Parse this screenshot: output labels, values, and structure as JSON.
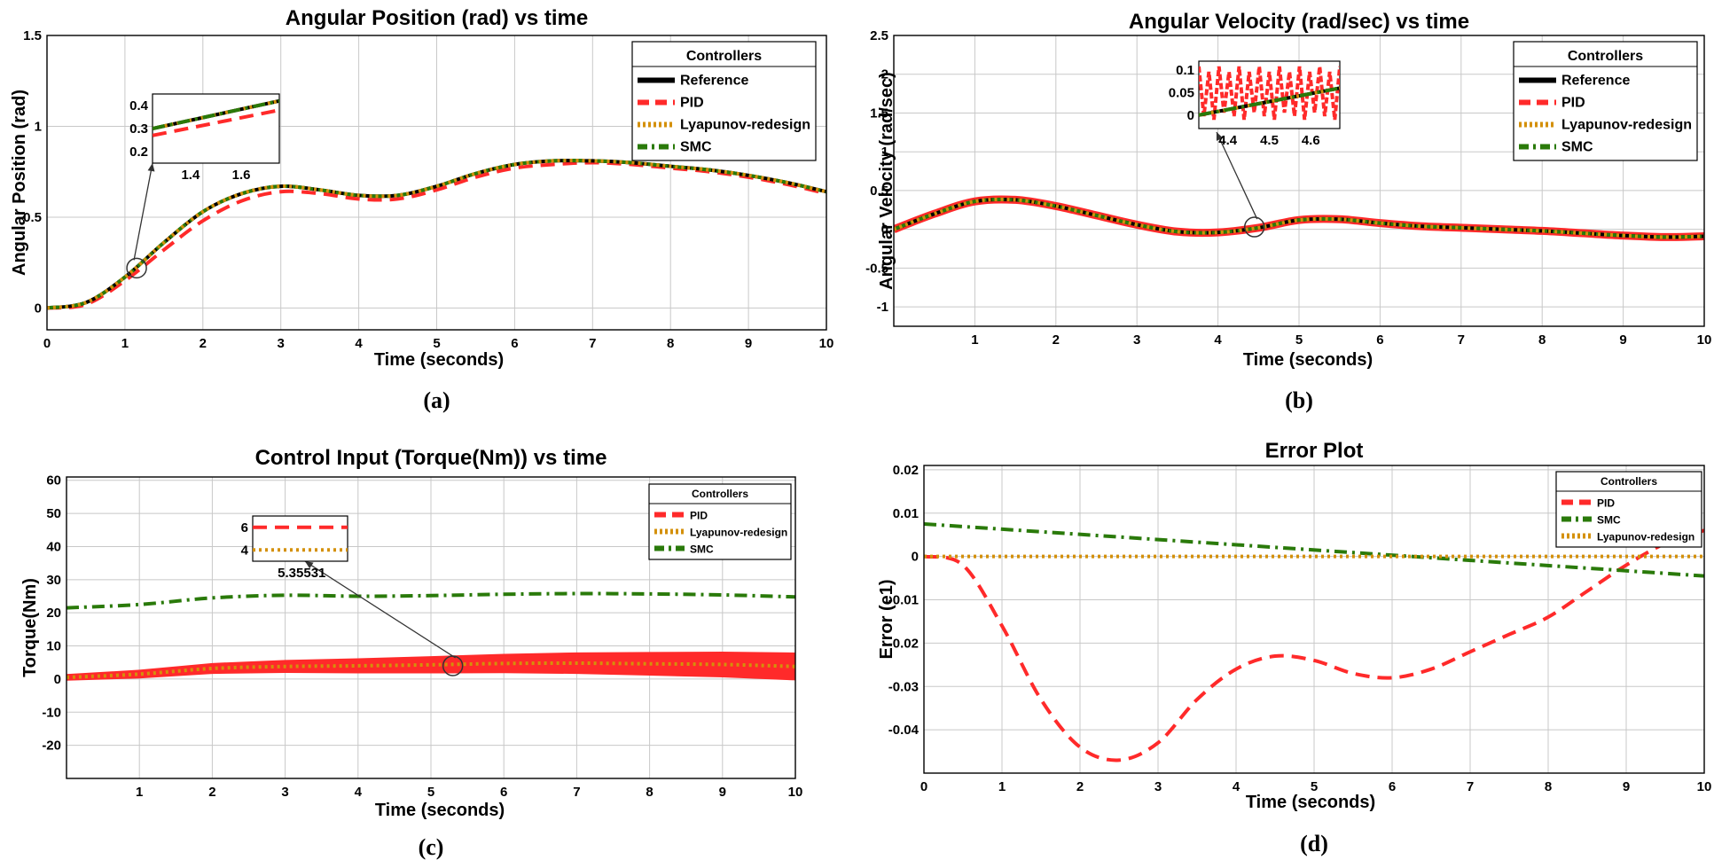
{
  "chart_data": [
    {
      "id": "a",
      "type": "line",
      "title": "Angular Position (rad) vs time",
      "xlabel": "Time (seconds)",
      "ylabel": "Angular Position (rad)",
      "subcaption": "(a)",
      "xlim": [
        0,
        10
      ],
      "ylim": [
        -0.12,
        1.5
      ],
      "xticks": [
        0,
        1,
        2,
        3,
        4,
        5,
        6,
        7,
        8,
        9,
        10
      ],
      "xtick_labels": [
        "0",
        "1",
        "2",
        "3",
        "4",
        "5",
        "6",
        "7",
        "8",
        "9",
        "10"
      ],
      "yticks": [
        0,
        0.5,
        1,
        1.5
      ],
      "ytick_labels": [
        "0",
        "0.5",
        "1",
        "1.5"
      ],
      "legend": {
        "title": "Controllers",
        "position": "top-right",
        "entries": [
          {
            "label": "Reference",
            "color": "#000000",
            "style": "solid"
          },
          {
            "label": "PID",
            "color": "#ff2a2a",
            "style": "dashed"
          },
          {
            "label": "Lyapunov-redesign",
            "color": "#d4900a",
            "style": "dotted"
          },
          {
            "label": "SMC",
            "color": "#2a7a0a",
            "style": "dashdot"
          }
        ]
      },
      "series": [
        {
          "name": "Reference",
          "x": [
            0,
            0.5,
            1,
            1.5,
            2,
            2.5,
            3,
            3.5,
            4,
            4.5,
            5,
            5.5,
            6,
            6.5,
            7,
            7.5,
            8,
            8.5,
            9,
            9.5,
            10
          ],
          "y": [
            0,
            0.03,
            0.17,
            0.36,
            0.53,
            0.63,
            0.67,
            0.65,
            0.62,
            0.62,
            0.67,
            0.74,
            0.79,
            0.81,
            0.81,
            0.8,
            0.78,
            0.76,
            0.73,
            0.69,
            0.64
          ]
        },
        {
          "name": "PID",
          "x": [
            0,
            0.5,
            1,
            1.5,
            2,
            2.5,
            3,
            3.5,
            4,
            4.5,
            5,
            5.5,
            6,
            6.5,
            7,
            7.5,
            8,
            8.5,
            9,
            9.5,
            10
          ],
          "y": [
            0,
            0.02,
            0.15,
            0.32,
            0.48,
            0.59,
            0.64,
            0.63,
            0.6,
            0.6,
            0.65,
            0.72,
            0.77,
            0.79,
            0.8,
            0.79,
            0.77,
            0.75,
            0.72,
            0.68,
            0.63
          ]
        },
        {
          "name": "Lyapunov-redesign",
          "x": [
            0,
            0.5,
            1,
            1.5,
            2,
            2.5,
            3,
            3.5,
            4,
            4.5,
            5,
            5.5,
            6,
            6.5,
            7,
            7.5,
            8,
            8.5,
            9,
            9.5,
            10
          ],
          "y": [
            0,
            0.03,
            0.17,
            0.36,
            0.53,
            0.63,
            0.67,
            0.65,
            0.62,
            0.62,
            0.67,
            0.74,
            0.79,
            0.81,
            0.81,
            0.8,
            0.78,
            0.76,
            0.73,
            0.69,
            0.64
          ]
        },
        {
          "name": "SMC",
          "x": [
            0,
            0.5,
            1,
            1.5,
            2,
            2.5,
            3,
            3.5,
            4,
            4.5,
            5,
            5.5,
            6,
            6.5,
            7,
            7.5,
            8,
            8.5,
            9,
            9.5,
            10
          ],
          "y": [
            0,
            0.03,
            0.17,
            0.36,
            0.53,
            0.63,
            0.67,
            0.65,
            0.62,
            0.62,
            0.67,
            0.74,
            0.79,
            0.81,
            0.81,
            0.8,
            0.78,
            0.76,
            0.73,
            0.69,
            0.64
          ]
        }
      ],
      "inset": {
        "xlim": [
          1.25,
          1.75
        ],
        "ylim": [
          0.15,
          0.45
        ],
        "xticks": [
          1.4,
          1.6
        ],
        "xtick_labels": [
          "1.4",
          "1.6"
        ],
        "yticks": [
          0.2,
          0.3,
          0.4
        ],
        "ytick_labels": [
          "0.2",
          "0.3",
          "0.4"
        ],
        "zoom_center": [
          1.15,
          0.22
        ],
        "series": [
          {
            "name": "Reference",
            "x": [
              1.25,
              1.75
            ],
            "y": [
              0.3,
              0.42
            ]
          },
          {
            "name": "PID",
            "x": [
              1.25,
              1.75
            ],
            "y": [
              0.27,
              0.38
            ]
          },
          {
            "name": "Lyapunov-redesign",
            "x": [
              1.25,
              1.75
            ],
            "y": [
              0.3,
              0.42
            ]
          },
          {
            "name": "SMC",
            "x": [
              1.25,
              1.75
            ],
            "y": [
              0.3,
              0.42
            ]
          }
        ]
      }
    },
    {
      "id": "b",
      "type": "line",
      "title": "Angular Velocity (rad/sec) vs time",
      "xlabel": "Time (seconds)",
      "ylabel": "Angular Velocity (rad/sec)",
      "subcaption": "(b)",
      "xlim": [
        0,
        10
      ],
      "ylim": [
        -1.25,
        2.5
      ],
      "xticks": [
        1,
        2,
        3,
        4,
        5,
        6,
        7,
        8,
        9,
        10
      ],
      "xtick_labels": [
        "1",
        "2",
        "3",
        "4",
        "5",
        "6",
        "7",
        "8",
        "9",
        "10"
      ],
      "yticks": [
        -1,
        -0.5,
        0,
        0.5,
        1,
        1.5,
        2,
        2.5
      ],
      "ytick_labels": [
        "-1",
        "-0.5",
        "0",
        "0.5",
        "1",
        "1.5",
        "2",
        "2.5"
      ],
      "legend": {
        "title": "Controllers",
        "position": "top-right",
        "entries": [
          {
            "label": "Reference",
            "color": "#000000",
            "style": "solid"
          },
          {
            "label": "PID",
            "color": "#ff2a2a",
            "style": "dashed"
          },
          {
            "label": "Lyapunov-redesign",
            "color": "#d4900a",
            "style": "dotted"
          },
          {
            "label": "SMC",
            "color": "#2a7a0a",
            "style": "dashdot"
          }
        ]
      },
      "series": [
        {
          "name": "Reference",
          "x": [
            0,
            0.5,
            1,
            1.5,
            2,
            2.5,
            3,
            3.5,
            4,
            4.5,
            5,
            5.5,
            6,
            6.5,
            7,
            7.5,
            8,
            8.5,
            9,
            9.5,
            10
          ],
          "y": [
            0,
            0.2,
            0.36,
            0.38,
            0.3,
            0.18,
            0.06,
            -0.03,
            -0.04,
            0.02,
            0.12,
            0.13,
            0.08,
            0.04,
            0.02,
            0.0,
            -0.02,
            -0.05,
            -0.08,
            -0.1,
            -0.09
          ]
        },
        {
          "name": "PID",
          "x": [
            0,
            0.5,
            1,
            1.5,
            2,
            2.5,
            3,
            3.5,
            4,
            4.5,
            5,
            5.5,
            6,
            6.5,
            7,
            7.5,
            8,
            8.5,
            9,
            9.5,
            10
          ],
          "y": [
            0,
            0.2,
            0.36,
            0.38,
            0.3,
            0.18,
            0.06,
            -0.03,
            -0.04,
            0.02,
            0.12,
            0.13,
            0.08,
            0.04,
            0.02,
            0.0,
            -0.02,
            -0.05,
            -0.08,
            -0.1,
            -0.09
          ]
        },
        {
          "name": "Lyapunov-redesign",
          "x": [
            0,
            0.5,
            1,
            1.5,
            2,
            2.5,
            3,
            3.5,
            4,
            4.5,
            5,
            5.5,
            6,
            6.5,
            7,
            7.5,
            8,
            8.5,
            9,
            9.5,
            10
          ],
          "y": [
            0,
            0.2,
            0.36,
            0.38,
            0.3,
            0.18,
            0.06,
            -0.03,
            -0.04,
            0.02,
            0.12,
            0.13,
            0.08,
            0.04,
            0.02,
            0.0,
            -0.02,
            -0.05,
            -0.08,
            -0.1,
            -0.09
          ]
        },
        {
          "name": "SMC",
          "x": [
            0,
            0.5,
            1,
            1.5,
            2,
            2.5,
            3,
            3.5,
            4,
            4.5,
            5,
            5.5,
            6,
            6.5,
            7,
            7.5,
            8,
            8.5,
            9,
            9.5,
            10
          ],
          "y": [
            0,
            0.2,
            0.36,
            0.38,
            0.3,
            0.18,
            0.06,
            -0.03,
            -0.04,
            0.02,
            0.12,
            0.13,
            0.08,
            0.04,
            0.02,
            0.0,
            -0.02,
            -0.05,
            -0.08,
            -0.1,
            -0.09
          ]
        }
      ],
      "inset": {
        "xlim": [
          4.33,
          4.67
        ],
        "ylim": [
          -0.03,
          0.12
        ],
        "xticks": [
          4.4,
          4.5,
          4.6
        ],
        "xtick_labels": [
          "4.4",
          "4.5",
          "4.6"
        ],
        "yticks": [
          0,
          0.05,
          0.1
        ],
        "ytick_labels": [
          "0",
          "0.05",
          "0.1"
        ],
        "zoom_center": [
          4.45,
          0.03
        ],
        "series": [
          {
            "name": "Reference",
            "x": [
              4.33,
              4.67
            ],
            "y": [
              0.0,
              0.06
            ]
          },
          {
            "name": "Lyapunov-redesign",
            "x": [
              4.33,
              4.67
            ],
            "y": [
              0.0,
              0.06
            ]
          },
          {
            "name": "SMC",
            "x": [
              4.33,
              4.67
            ],
            "y": [
              0.0,
              0.06
            ]
          }
        ]
      }
    },
    {
      "id": "c",
      "type": "line",
      "title": "Control Input (Torque(Nm)) vs time",
      "xlabel": "Time (seconds)",
      "ylabel": "Torque(Nm)",
      "subcaption": "(c)",
      "xlim": [
        0,
        10
      ],
      "ylim": [
        -30,
        61
      ],
      "xticks": [
        1,
        2,
        3,
        4,
        5,
        6,
        7,
        8,
        9,
        10
      ],
      "xtick_labels": [
        "1",
        "2",
        "3",
        "4",
        "5",
        "6",
        "7",
        "8",
        "9",
        "10"
      ],
      "yticks": [
        -20,
        -10,
        0,
        10,
        20,
        30,
        40,
        50,
        60
      ],
      "ytick_labels": [
        "-20",
        "-10",
        "0",
        "10",
        "20",
        "30",
        "40",
        "50",
        "60"
      ],
      "legend": {
        "title": "Controllers",
        "position": "top-right",
        "entries": [
          {
            "label": "PID",
            "color": "#ff2a2a",
            "style": "dashed"
          },
          {
            "label": "Lyapunov-redesign",
            "color": "#d4900a",
            "style": "dotted"
          },
          {
            "label": "SMC",
            "color": "#2a7a0a",
            "style": "dashdot"
          }
        ]
      },
      "series": [
        {
          "name": "PID",
          "x": [
            0,
            1,
            2,
            3,
            4,
            5,
            6,
            7,
            8,
            9,
            10
          ],
          "y": [
            0.5,
            1.5,
            3.2,
            3.8,
            4.0,
            4.3,
            4.7,
            4.8,
            4.6,
            4.4,
            3.8
          ]
        },
        {
          "name": "Lyapunov-redesign",
          "x": [
            0,
            1,
            2,
            3,
            4,
            5,
            6,
            7,
            8,
            9,
            10
          ],
          "y": [
            0.5,
            1.5,
            3.2,
            3.8,
            4.0,
            4.3,
            4.7,
            4.8,
            4.6,
            4.4,
            3.8
          ]
        },
        {
          "name": "SMC",
          "x": [
            0,
            1,
            2,
            3,
            4,
            5,
            6,
            7,
            8,
            9,
            10
          ],
          "y": [
            21.5,
            22.5,
            24.5,
            25.3,
            25.0,
            25.2,
            25.6,
            25.8,
            25.7,
            25.4,
            24.8
          ]
        }
      ],
      "inset": {
        "xlim": [
          5.355,
          5.3556
        ],
        "ylim": [
          3,
          7
        ],
        "xticks": [
          5.35531
        ],
        "xtick_labels": [
          "5.35531"
        ],
        "yticks": [
          4,
          6
        ],
        "ytick_labels": [
          "4",
          "6"
        ],
        "zoom_center": [
          5.3,
          4.0
        ],
        "series": [
          {
            "name": "PID",
            "x": [
              5.355,
              5.3556
            ],
            "y": [
              6,
              6
            ]
          },
          {
            "name": "Lyapunov-redesign",
            "x": [
              5.355,
              5.3556
            ],
            "y": [
              4,
              4
            ]
          }
        ]
      }
    },
    {
      "id": "d",
      "type": "line",
      "title": "Error Plot",
      "xlabel": "Time (seconds)",
      "ylabel": "Error (e1)",
      "subcaption": "(d)",
      "xlim": [
        0,
        10
      ],
      "ylim": [
        -0.05,
        0.021
      ],
      "xticks": [
        0,
        1,
        2,
        3,
        4,
        5,
        6,
        7,
        8,
        9,
        10
      ],
      "xtick_labels": [
        "0",
        "1",
        "2",
        "3",
        "4",
        "5",
        "6",
        "7",
        "8",
        "9",
        "10"
      ],
      "yticks": [
        -0.04,
        -0.03,
        -0.02,
        -0.01,
        0,
        0.01,
        0.02
      ],
      "ytick_labels": [
        "-0.04",
        "-0.03",
        "-0.02",
        "-0.01",
        "0",
        "0.01",
        "0.02"
      ],
      "legend": {
        "title": "Controllers",
        "position": "top-right",
        "entries": [
          {
            "label": "PID",
            "color": "#ff2a2a",
            "style": "dashed"
          },
          {
            "label": "SMC",
            "color": "#2a7a0a",
            "style": "dashdot"
          },
          {
            "label": "Lyapunov-redesign",
            "color": "#d4900a",
            "style": "dotted"
          }
        ]
      },
      "series": [
        {
          "name": "PID",
          "x": [
            0,
            0.5,
            1,
            1.5,
            2,
            2.5,
            3,
            3.5,
            4,
            4.5,
            5,
            5.5,
            6,
            6.5,
            7,
            7.5,
            8,
            8.5,
            9,
            9.5,
            10
          ],
          "y": [
            0,
            -0.002,
            -0.016,
            -0.033,
            -0.044,
            -0.047,
            -0.043,
            -0.033,
            -0.026,
            -0.023,
            -0.024,
            -0.027,
            -0.028,
            -0.026,
            -0.022,
            -0.018,
            -0.014,
            -0.008,
            -0.002,
            0.003,
            0.006
          ]
        },
        {
          "name": "SMC",
          "x": [
            0,
            10
          ],
          "y": [
            0.0075,
            -0.0045
          ]
        },
        {
          "name": "Lyapunov-redesign",
          "x": [
            0,
            10
          ],
          "y": [
            0,
            0
          ]
        }
      ]
    }
  ]
}
